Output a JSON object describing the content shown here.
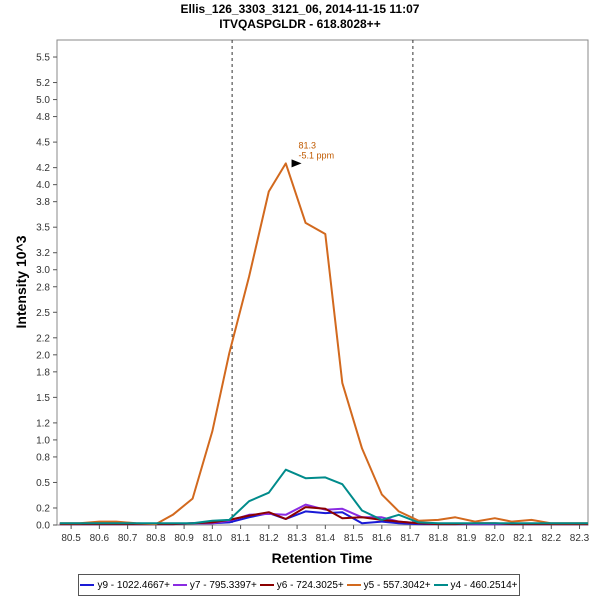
{
  "chart_data": {
    "type": "line",
    "title": "Ellis_126_3303_3121_06, 2014-11-15 11:07",
    "subtitle": "ITVQASPGLDR - 618.8028++",
    "xlabel": "Retention Time",
    "ylabel": "Intensity 10^3",
    "xlim": [
      80.45,
      82.33
    ],
    "ylim": [
      0,
      5.7
    ],
    "x_ticks": [
      "80.5",
      "80.6",
      "80.7",
      "80.8",
      "80.9",
      "81.0",
      "81.1",
      "81.2",
      "81.3",
      "81.4",
      "81.5",
      "81.6",
      "81.7",
      "81.8",
      "81.9",
      "82.0",
      "82.1",
      "82.2",
      "82.3"
    ],
    "y_ticks": [
      "0.0",
      "0.2",
      "0.5",
      "0.8",
      "1.0",
      "1.2",
      "1.5",
      "1.8",
      "2.0",
      "2.2",
      "2.5",
      "2.8",
      "3.0",
      "3.2",
      "3.5",
      "3.8",
      "4.0",
      "4.2",
      "4.5",
      "4.8",
      "5.0",
      "5.2",
      "5.5"
    ],
    "boundaries": [
      81.07,
      81.71
    ],
    "annotation": {
      "line1": "81.3",
      "line2": "-5.1 ppm",
      "x": 81.33,
      "y": 4.25
    },
    "x": [
      80.46,
      80.53,
      80.6,
      80.66,
      80.73,
      80.8,
      80.86,
      80.93,
      81.0,
      81.06,
      81.13,
      81.2,
      81.26,
      81.33,
      81.4,
      81.46,
      81.53,
      81.6,
      81.66,
      81.73,
      81.8,
      81.86,
      81.93,
      82.0,
      82.06,
      82.13,
      82.2,
      82.26,
      82.33
    ],
    "series": [
      {
        "name": "y9 - 1022.4667+",
        "color": "#1a1ad6",
        "values": [
          0.01,
          0.01,
          0.01,
          0.01,
          0.01,
          0.01,
          0.01,
          0.02,
          0.02,
          0.03,
          0.09,
          0.14,
          0.07,
          0.16,
          0.14,
          0.15,
          0.02,
          0.04,
          0.02,
          0.01,
          0.01,
          0.01,
          0.01,
          0.01,
          0.01,
          0.01,
          0.01,
          0.01,
          0.01
        ]
      },
      {
        "name": "y7 - 795.3397+",
        "color": "#8a2be2",
        "values": [
          0.01,
          0.01,
          0.01,
          0.01,
          0.01,
          0.01,
          0.01,
          0.02,
          0.02,
          0.05,
          0.12,
          0.13,
          0.12,
          0.24,
          0.18,
          0.19,
          0.09,
          0.09,
          0.04,
          0.02,
          0.01,
          0.01,
          0.01,
          0.01,
          0.01,
          0.01,
          0.01,
          0.01,
          0.01
        ]
      },
      {
        "name": "y6 - 724.3025+",
        "color": "#8b0000",
        "values": [
          0.01,
          0.01,
          0.01,
          0.01,
          0.01,
          0.01,
          0.01,
          0.02,
          0.03,
          0.06,
          0.11,
          0.15,
          0.07,
          0.21,
          0.19,
          0.08,
          0.09,
          0.06,
          0.04,
          0.02,
          0.01,
          0.01,
          0.02,
          0.02,
          0.01,
          0.01,
          0.01,
          0.01,
          0.01
        ]
      },
      {
        "name": "y5 - 557.3042+",
        "color": "#d2691e",
        "values": [
          0.02,
          0.02,
          0.04,
          0.04,
          0.02,
          0.01,
          0.12,
          0.31,
          1.1,
          2.02,
          2.92,
          3.92,
          4.25,
          3.55,
          3.42,
          1.67,
          0.9,
          0.36,
          0.16,
          0.05,
          0.06,
          0.09,
          0.04,
          0.08,
          0.04,
          0.06,
          0.02,
          0.02,
          0.02
        ]
      },
      {
        "name": "y4 - 460.2514+",
        "color": "#008b8b",
        "values": [
          0.02,
          0.02,
          0.02,
          0.02,
          0.02,
          0.02,
          0.02,
          0.02,
          0.05,
          0.06,
          0.28,
          0.38,
          0.65,
          0.55,
          0.56,
          0.48,
          0.17,
          0.06,
          0.12,
          0.03,
          0.02,
          0.02,
          0.02,
          0.02,
          0.02,
          0.02,
          0.02,
          0.02,
          0.02
        ]
      }
    ]
  }
}
